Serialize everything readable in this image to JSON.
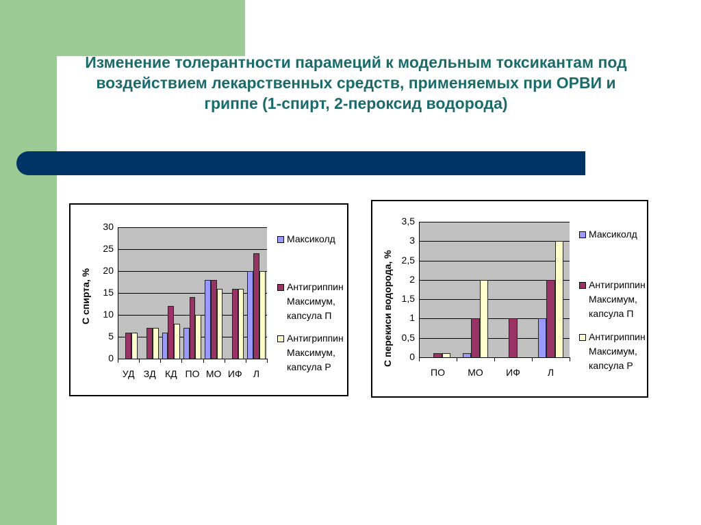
{
  "slide": {
    "title": "Изменение толерантности парамеций к модельным токсикантам под воздействием лекарственных средств, применяемых при ОРВИ и гриппе (1-спирт, 2-пероксид водорода)",
    "colors": {
      "green": "#9ccb96",
      "band": "#003366",
      "title": "#1a6b6a"
    }
  },
  "chart_data": [
    {
      "type": "bar",
      "title": "",
      "xlabel": "",
      "ylabel": "С спирта, %",
      "ylim": [
        0,
        30
      ],
      "yticks": [
        "0",
        "5",
        "10",
        "15",
        "20",
        "25",
        "30"
      ],
      "categories": [
        "УД",
        "ЗД",
        "КД",
        "ПО",
        "МО",
        "ИФ",
        "Л"
      ],
      "series": [
        {
          "name": "Максиколд",
          "color": "#9999ff",
          "values": [
            0,
            0,
            6,
            7,
            18,
            0,
            20
          ]
        },
        {
          "name": "Антигриппин Максимум, капсула П",
          "color": "#993366",
          "values": [
            6,
            7,
            12,
            14,
            18,
            16,
            24
          ]
        },
        {
          "name": "Антигриппин Максимум, капсула Р",
          "color": "#ffffcc",
          "values": [
            6,
            7,
            8,
            10,
            16,
            16,
            20
          ]
        }
      ],
      "grid": true,
      "legend_position": "right"
    },
    {
      "type": "bar",
      "title": "",
      "xlabel": "",
      "ylabel": "С перекиси водорода, %",
      "ylim": [
        0,
        3.5
      ],
      "yticks": [
        "0",
        "0,5",
        "1",
        "1,5",
        "2",
        "2,5",
        "3",
        "3,5"
      ],
      "categories": [
        "ПО",
        "МО",
        "ИФ",
        "Л"
      ],
      "series": [
        {
          "name": "Максиколд",
          "color": "#9999ff",
          "values": [
            0,
            0.1,
            0,
            1
          ]
        },
        {
          "name": "Антигриппин Максимум, капсула П",
          "color": "#993366",
          "values": [
            0.1,
            1,
            1,
            2
          ]
        },
        {
          "name": "Антигриппин Максимум, капсула Р",
          "color": "#ffffcc",
          "values": [
            0.1,
            2,
            0,
            3
          ]
        }
      ],
      "grid": true,
      "legend_position": "right"
    }
  ],
  "legend": {
    "item0": "Максиколд",
    "item1": [
      "Антигриппин",
      "Максимум,",
      "капсула П"
    ],
    "item2": [
      "Антигриппин",
      "Максимум,",
      "капсула Р"
    ]
  }
}
